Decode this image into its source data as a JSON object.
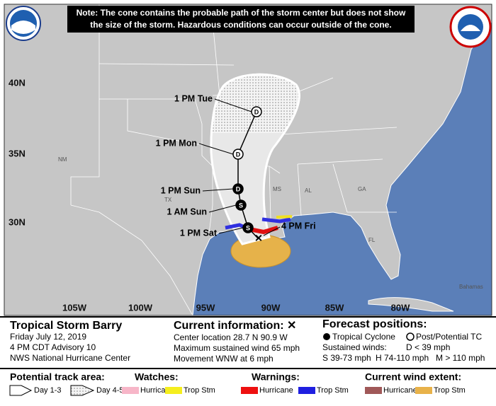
{
  "note": [
    "Note: The cone contains the probable path of the storm center but does not show",
    "the size of the storm. Hazardous conditions can occur outside of the cone."
  ],
  "map": {
    "latitude_labels": [
      "40N",
      "35N",
      "30N"
    ],
    "longitude_labels": [
      "105W",
      "100W",
      "95W",
      "90W",
      "85W",
      "80W"
    ],
    "region_labels": [
      "NM",
      "TX",
      "MS",
      "AL",
      "GA",
      "FL",
      "Bahamas"
    ]
  },
  "forecast_points": [
    {
      "time": "1 PM Tue",
      "symbol": "D",
      "marker_color": "#ffffff"
    },
    {
      "time": "1 PM Mon",
      "symbol": "D",
      "marker_color": "#ffffff"
    },
    {
      "time": "1 PM Sun",
      "symbol": "D",
      "marker_color": "#000000"
    },
    {
      "time": "1 AM Sun",
      "symbol": "S",
      "marker_color": "#000000"
    },
    {
      "time": "1 PM Sat",
      "symbol": "S",
      "marker_color": "#000000"
    }
  ],
  "current_time": "4 PM Fri",
  "storm": {
    "name": "Tropical Storm Barry",
    "date": "Friday July 12, 2019",
    "advisory": "4 PM CDT Advisory 10",
    "agency": "NWS National Hurricane Center"
  },
  "current_information": {
    "title": "Current information: ✕",
    "lines": [
      "Center location 28.7 N 90.9 W",
      "Maximum sustained wind 65 mph",
      "Movement WNW at 6 mph"
    ]
  },
  "forecast_positions": {
    "title": "Forecast positions:",
    "tropical_cyclone": "Tropical Cyclone",
    "post_potential": "Post/Potential TC",
    "sustained_winds": "Sustained winds:",
    "d": "D < 39 mph",
    "s": "S 39-73 mph",
    "h": "H 74-110 mph",
    "m": "M > 110 mph"
  },
  "legend": {
    "track_title": "Potential track area:",
    "day13": "Day 1-3",
    "day45": "Day 4-5",
    "watches_title": "Watches:",
    "watch_hurricane": "Hurricane",
    "watch_tropstm": "Trop Stm",
    "warnings_title": "Warnings:",
    "warning_hurricane": "Hurricane",
    "warning_tropstm": "Trop Stm",
    "wind_title": "Current wind extent:",
    "wind_hurricane": "Hurricane",
    "wind_tropstm": "Trop Stm"
  }
}
